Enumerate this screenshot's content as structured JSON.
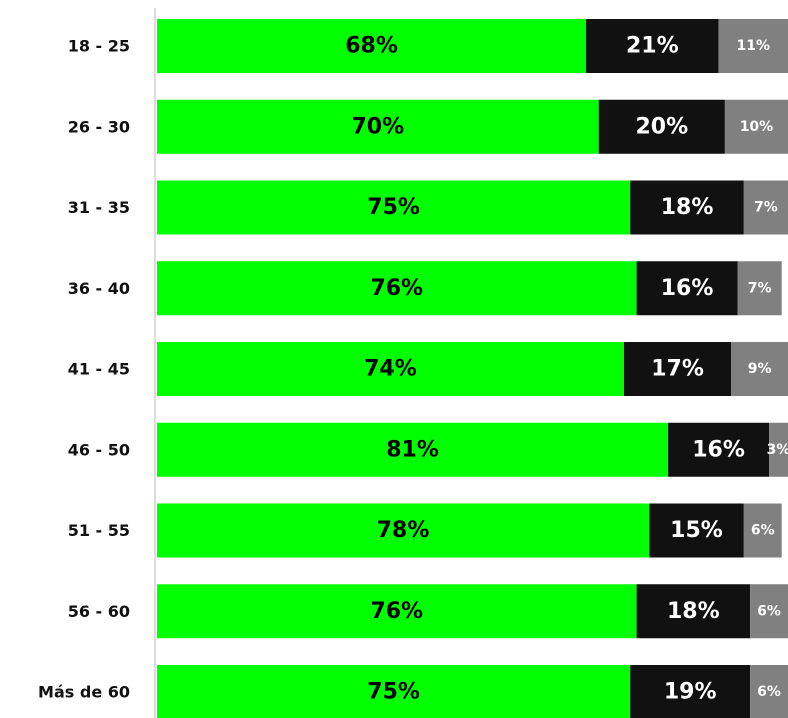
{
  "chart_data": {
    "type": "stacked-barh",
    "categories": [
      "18 - 25",
      "26 - 30",
      "31 - 35",
      "36 - 40",
      "41 - 45",
      "46 - 50",
      "51 - 55",
      "56 - 60",
      "Más de 60"
    ],
    "xlim": [
      0,
      100
    ],
    "series": [
      {
        "color": "#00ff00",
        "values": [
          68,
          70,
          75,
          76,
          74,
          81,
          78,
          76,
          75
        ],
        "value_labels": [
          "68%",
          "70%",
          "75%",
          "76%",
          "74%",
          "81%",
          "78%",
          "76%",
          "75%"
        ]
      },
      {
        "color": "#111111",
        "values": [
          21,
          20,
          18,
          16,
          17,
          16,
          15,
          18,
          19
        ],
        "value_labels": [
          "21%",
          "20%",
          "18%",
          "16%",
          "17%",
          "16%",
          "15%",
          "18%",
          "19%"
        ]
      },
      {
        "color": "#808080",
        "values": [
          11,
          10,
          7,
          7,
          9,
          3,
          6,
          6,
          6
        ],
        "value_labels": [
          "11%",
          "10%",
          "7%",
          "7%",
          "9%",
          "3%",
          "6%",
          "6%",
          "6%"
        ]
      }
    ]
  }
}
